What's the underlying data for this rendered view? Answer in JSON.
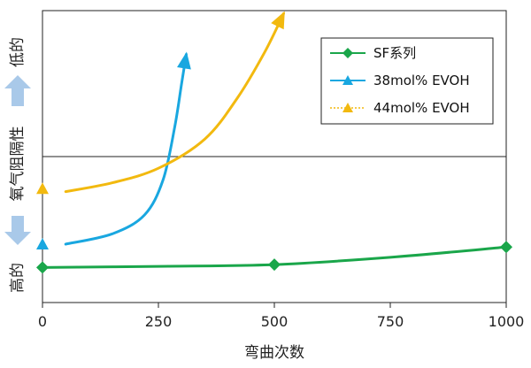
{
  "chart_data": {
    "type": "line",
    "xlabel": "弯曲次数",
    "ylabel_top": "低的",
    "ylabel_middle": "氧气阻隔性",
    "ylabel_bottom": "高的",
    "x_ticks": [
      "0",
      "250",
      "500",
      "750",
      "1000"
    ],
    "xlim": [
      0,
      1000
    ],
    "ylim": [
      0,
      1
    ],
    "legend_position": "top-right",
    "series": [
      {
        "name": "SF系列",
        "color": "#1aa64a",
        "marker": "diamond",
        "marker_x": [
          0,
          500,
          1000
        ],
        "marker_y": [
          0.12,
          0.13,
          0.19
        ],
        "curve_x": [
          0,
          250,
          500,
          750,
          1000
        ],
        "curve_y": [
          0.12,
          0.124,
          0.13,
          0.155,
          0.19
        ]
      },
      {
        "name": "38mol% EVOH",
        "color": "#19a7e0",
        "marker": "triangle",
        "marker_x": [
          0
        ],
        "marker_y": [
          0.2
        ],
        "curve_x": [
          50,
          150,
          220,
          260,
          285,
          300,
          310
        ],
        "curve_y": [
          0.2,
          0.235,
          0.3,
          0.42,
          0.6,
          0.75,
          0.85
        ]
      },
      {
        "name": "44mol% EVOH",
        "color": "#f2b90f",
        "marker": "triangle",
        "marker_x": [
          0
        ],
        "marker_y": [
          0.39
        ],
        "curve_x": [
          50,
          150,
          250,
          350,
          420,
          480,
          520
        ],
        "curve_y": [
          0.38,
          0.41,
          0.46,
          0.56,
          0.7,
          0.86,
          0.99
        ]
      }
    ],
    "threshold_y": 0.5
  }
}
